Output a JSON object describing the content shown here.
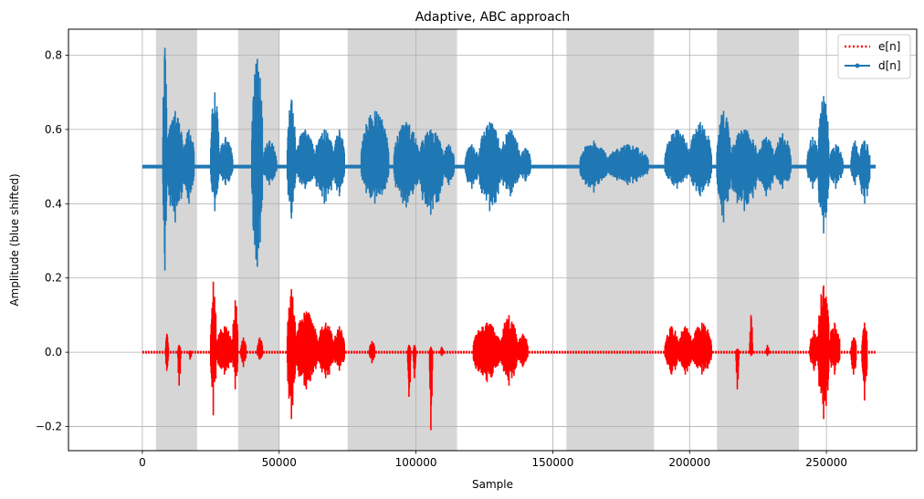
{
  "chart_data": {
    "type": "line",
    "title": "Adaptive, ABC approach",
    "xlabel": "Sample",
    "ylabel": "Amplitude (blue shifted)",
    "xlim": [
      -27000,
      283000
    ],
    "ylim": [
      -0.265,
      0.87
    ],
    "xticks": [
      0,
      50000,
      100000,
      150000,
      200000,
      250000
    ],
    "xtick_labels": [
      "0",
      "50000",
      "100000",
      "150000",
      "200000",
      "250000"
    ],
    "yticks": [
      -0.2,
      0.0,
      0.2,
      0.4,
      0.6,
      0.8
    ],
    "ytick_labels": [
      "−0.2",
      "0.0",
      "0.2",
      "0.4",
      "0.6",
      "0.8"
    ],
    "grid": true,
    "legend_position": "upper right",
    "shaded_regions": [
      [
        5000,
        20000
      ],
      [
        35000,
        50000
      ],
      [
        75000,
        115000
      ],
      [
        155000,
        187000
      ],
      [
        210000,
        240000
      ]
    ],
    "shaded_color": "#d6d6d6",
    "series": [
      {
        "name": "e[n]",
        "color": "#ff0000",
        "style": "dotted",
        "offset": 0.0,
        "x_range": [
          0,
          268000
        ],
        "bursts": [
          [
            8500,
            9500,
            0.05,
            -0.05
          ],
          [
            13000,
            14000,
            0.02,
            -0.09
          ],
          [
            17000,
            18000,
            0.005,
            -0.02
          ],
          [
            25000,
            27000,
            0.19,
            -0.17
          ],
          [
            27000,
            33000,
            0.07,
            -0.06
          ],
          [
            33000,
            35000,
            0.14,
            -0.1
          ],
          [
            36000,
            38000,
            0.04,
            -0.04
          ],
          [
            42000,
            44000,
            0.04,
            -0.02
          ],
          [
            53000,
            56000,
            0.17,
            -0.18
          ],
          [
            56000,
            64000,
            0.11,
            -0.1
          ],
          [
            64000,
            70000,
            0.08,
            -0.07
          ],
          [
            70000,
            74000,
            0.07,
            -0.05
          ],
          [
            83000,
            85000,
            0.03,
            -0.03
          ],
          [
            97000,
            98000,
            0.02,
            -0.12
          ],
          [
            99000,
            100000,
            0.02,
            -0.07
          ],
          [
            105000,
            106000,
            0.015,
            -0.21
          ],
          [
            109000,
            110000,
            0.015,
            -0.01
          ],
          [
            121000,
            131000,
            0.08,
            -0.08
          ],
          [
            131000,
            137000,
            0.1,
            -0.09
          ],
          [
            137000,
            141000,
            0.05,
            -0.04
          ],
          [
            191000,
            196000,
            0.07,
            -0.06
          ],
          [
            196000,
            201000,
            0.07,
            -0.06
          ],
          [
            201000,
            208000,
            0.08,
            -0.06
          ],
          [
            217000,
            218000,
            0.01,
            -0.1
          ],
          [
            222000,
            223000,
            0.1,
            -0.01
          ],
          [
            228000,
            229000,
            0.02,
            -0.01
          ],
          [
            244000,
            247000,
            0.06,
            -0.05
          ],
          [
            247000,
            251000,
            0.18,
            -0.18
          ],
          [
            251000,
            255000,
            0.08,
            -0.06
          ],
          [
            259000,
            261000,
            0.04,
            -0.06
          ],
          [
            263000,
            265000,
            0.08,
            -0.13
          ]
        ]
      },
      {
        "name": "d[n]",
        "color": "#1f77b4",
        "style": "solid-dot",
        "offset": 0.5,
        "x_range": [
          0,
          268000
        ],
        "bursts": [
          [
            7500,
            9000,
            0.82,
            0.22
          ],
          [
            9000,
            15000,
            0.65,
            0.35
          ],
          [
            15000,
            19000,
            0.6,
            0.4
          ],
          [
            25000,
            28000,
            0.7,
            0.38
          ],
          [
            28000,
            33000,
            0.58,
            0.45
          ],
          [
            40000,
            44000,
            0.79,
            0.23
          ],
          [
            44000,
            49000,
            0.57,
            0.45
          ],
          [
            53000,
            56000,
            0.68,
            0.36
          ],
          [
            56000,
            63000,
            0.6,
            0.44
          ],
          [
            63000,
            70000,
            0.6,
            0.4
          ],
          [
            70000,
            74000,
            0.6,
            0.42
          ],
          [
            80000,
            90000,
            0.65,
            0.4
          ],
          [
            92000,
            101000,
            0.62,
            0.39
          ],
          [
            101000,
            110000,
            0.6,
            0.37
          ],
          [
            110000,
            114000,
            0.56,
            0.45
          ],
          [
            118000,
            123000,
            0.56,
            0.44
          ],
          [
            123000,
            131000,
            0.62,
            0.38
          ],
          [
            131000,
            138000,
            0.6,
            0.42
          ],
          [
            138000,
            142000,
            0.55,
            0.46
          ],
          [
            160000,
            170000,
            0.57,
            0.43
          ],
          [
            170000,
            185000,
            0.56,
            0.45
          ],
          [
            191000,
            200000,
            0.6,
            0.44
          ],
          [
            200000,
            208000,
            0.62,
            0.42
          ],
          [
            210000,
            215000,
            0.65,
            0.35
          ],
          [
            215000,
            225000,
            0.6,
            0.38
          ],
          [
            225000,
            231000,
            0.58,
            0.42
          ],
          [
            231000,
            237000,
            0.59,
            0.44
          ],
          [
            243000,
            247000,
            0.58,
            0.44
          ],
          [
            247000,
            251000,
            0.69,
            0.32
          ],
          [
            251000,
            256000,
            0.56,
            0.44
          ],
          [
            259000,
            262000,
            0.57,
            0.45
          ],
          [
            262000,
            266000,
            0.57,
            0.4
          ]
        ]
      }
    ]
  }
}
